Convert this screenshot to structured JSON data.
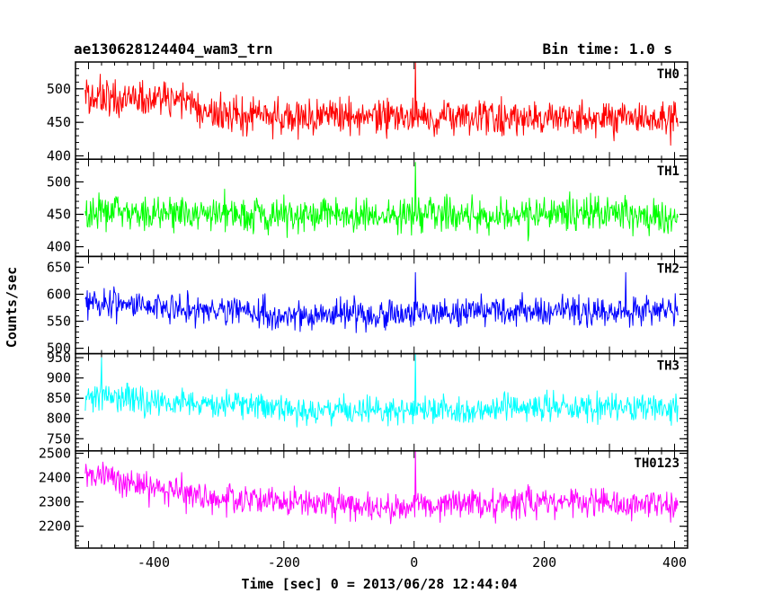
{
  "header": {
    "title": "ae130628124404_wam3_trn",
    "bin_time": "Bin time: 1.0 s"
  },
  "axes": {
    "xlabel": "Time [sec] 0 = 2013/06/28 12:44:04",
    "ylabel": "Counts/sec"
  },
  "chart_data": {
    "type": "line",
    "title": "ae130628124404_wam3_trn",
    "xlabel": "Time [sec] 0 = 2013/06/28 12:44:04",
    "ylabel": "Counts/sec",
    "xlim": [
      -520,
      420
    ],
    "x_ticks": [
      -400,
      -200,
      0,
      200,
      400
    ],
    "x_range_data": [
      -505,
      405
    ],
    "bin_time_s": 1.0,
    "grid": false,
    "legend": "none",
    "panels": [
      {
        "name": "TH0",
        "color": "#ff0000",
        "ylim": [
          395,
          540
        ],
        "y_ticks": [
          400,
          450,
          500
        ],
        "trend": [
          [
            -505,
            485
          ],
          [
            -340,
            482
          ],
          [
            -330,
            462
          ],
          [
            -200,
            460
          ],
          [
            0,
            458
          ],
          [
            150,
            455
          ],
          [
            405,
            455
          ]
        ],
        "noise": 22,
        "spikes": [
          [
            2,
            545
          ]
        ]
      },
      {
        "name": "TH1",
        "color": "#00ff00",
        "ylim": [
          385,
          535
        ],
        "y_ticks": [
          400,
          450,
          500
        ],
        "trend": [
          [
            -505,
            452
          ],
          [
            -200,
            448
          ],
          [
            0,
            450
          ],
          [
            200,
            450
          ],
          [
            405,
            448
          ]
        ],
        "noise": 21,
        "spikes": [
          [
            2,
            530
          ]
        ]
      },
      {
        "name": "TH2",
        "color": "#0000ff",
        "ylim": [
          490,
          670
        ],
        "y_ticks": [
          500,
          550,
          600,
          650
        ],
        "trend": [
          [
            -505,
            582
          ],
          [
            -300,
            572
          ],
          [
            -200,
            562
          ],
          [
            0,
            565
          ],
          [
            200,
            570
          ],
          [
            405,
            568
          ]
        ],
        "noise": 22,
        "spikes": [
          [
            2,
            640
          ],
          [
            325,
            640
          ]
        ]
      },
      {
        "name": "TH3",
        "color": "#00ffff",
        "ylim": [
          720,
          960
        ],
        "y_ticks": [
          750,
          800,
          850,
          900,
          950
        ],
        "trend": [
          [
            -505,
            855
          ],
          [
            -300,
            835
          ],
          [
            -100,
            815
          ],
          [
            0,
            818
          ],
          [
            200,
            828
          ],
          [
            405,
            828
          ]
        ],
        "noise": 30,
        "spikes": [
          [
            -480,
            950
          ],
          [
            2,
            965
          ]
        ]
      },
      {
        "name": "TH0123",
        "color": "#ff00ff",
        "ylim": [
          2110,
          2510
        ],
        "y_ticks": [
          2200,
          2300,
          2400,
          2500
        ],
        "trend": [
          [
            -505,
            2420
          ],
          [
            -400,
            2360
          ],
          [
            -300,
            2320
          ],
          [
            -100,
            2280
          ],
          [
            0,
            2285
          ],
          [
            200,
            2300
          ],
          [
            405,
            2290
          ]
        ],
        "noise": 48,
        "spikes": [
          [
            2,
            2510
          ]
        ]
      }
    ]
  }
}
